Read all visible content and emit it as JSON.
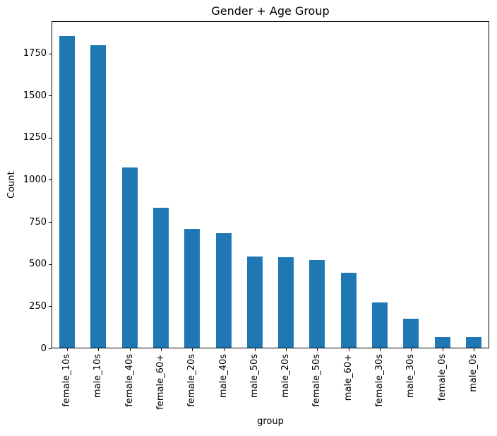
{
  "chart_data": {
    "type": "bar",
    "title": "Gender + Age Group",
    "xlabel": "group",
    "ylabel": "Count",
    "categories": [
      "female_10s",
      "male_10s",
      "female_40s",
      "female_60+",
      "female_20s",
      "male_40s",
      "male_50s",
      "male_20s",
      "female_50s",
      "male_60+",
      "female_30s",
      "male_30s",
      "female_0s",
      "male_0s"
    ],
    "values": [
      1848,
      1795,
      1071,
      832,
      706,
      681,
      540,
      535,
      520,
      446,
      268,
      170,
      62,
      62
    ],
    "yticks": [
      0,
      250,
      500,
      750,
      1000,
      1250,
      1500,
      1750
    ],
    "ylim": [
      0,
      1941
    ],
    "bar_color": "#1f77b4",
    "axis_color": "#000000",
    "grid": false,
    "legend_position": "none",
    "x_tick_rotation_degrees": 90
  }
}
